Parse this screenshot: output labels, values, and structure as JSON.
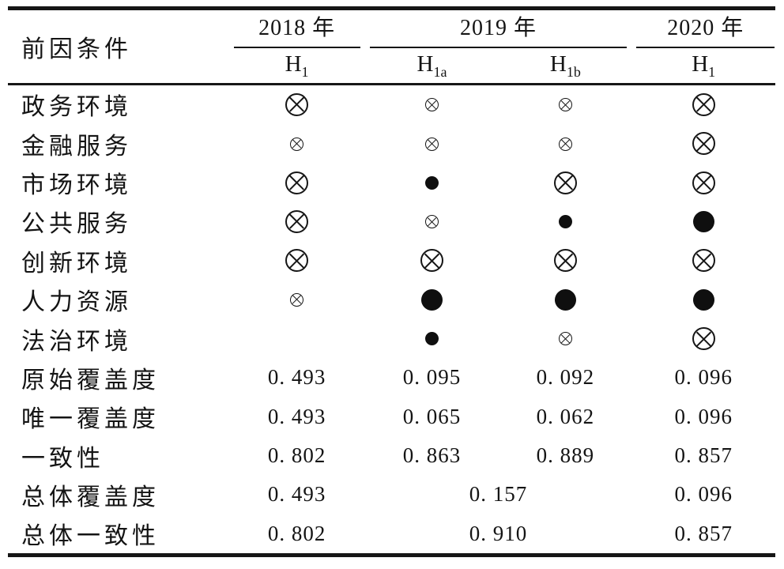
{
  "table": {
    "corner_label": "前因条件",
    "year_groups": [
      {
        "label": "2018 年"
      },
      {
        "label": "2019 年"
      },
      {
        "label": "2020 年"
      }
    ],
    "hypotheses": [
      {
        "base": "H",
        "sub": "1"
      },
      {
        "base": "H",
        "sub": "1a"
      },
      {
        "base": "H",
        "sub": "1b"
      },
      {
        "base": "H",
        "sub": "1"
      }
    ],
    "condition_rows": [
      {
        "label": "政务环境",
        "cells": [
          "otimes-large",
          "otimes-small",
          "otimes-small",
          "otimes-large"
        ]
      },
      {
        "label": "金融服务",
        "cells": [
          "otimes-small",
          "otimes-small",
          "otimes-small",
          "otimes-large"
        ]
      },
      {
        "label": "市场环境",
        "cells": [
          "otimes-large",
          "dot-small",
          "otimes-large",
          "otimes-large"
        ]
      },
      {
        "label": "公共服务",
        "cells": [
          "otimes-large",
          "otimes-small",
          "dot-small",
          "dot-large"
        ]
      },
      {
        "label": "创新环境",
        "cells": [
          "otimes-large",
          "otimes-large",
          "otimes-large",
          "otimes-large"
        ]
      },
      {
        "label": "人力资源",
        "cells": [
          "otimes-small",
          "dot-large",
          "dot-large",
          "dot-large"
        ]
      },
      {
        "label": "法治环境",
        "cells": [
          "none",
          "dot-small",
          "otimes-small",
          "otimes-large"
        ]
      }
    ],
    "metric_rows": [
      {
        "label": "原始覆盖度",
        "values": [
          "0. 493",
          "0. 095",
          "0. 092",
          "0. 096"
        ]
      },
      {
        "label": "唯一覆盖度",
        "values": [
          "0. 493",
          "0. 065",
          "0. 062",
          "0. 096"
        ]
      },
      {
        "label": "一致性",
        "values": [
          "0. 802",
          "0. 863",
          "0. 889",
          "0. 857"
        ]
      }
    ],
    "summary_rows": [
      {
        "label": "总体覆盖度",
        "values": [
          "0. 493",
          "0. 157",
          "0. 096"
        ]
      },
      {
        "label": "总体一致性",
        "values": [
          "0. 802",
          "0. 910",
          "0. 857"
        ]
      }
    ]
  }
}
